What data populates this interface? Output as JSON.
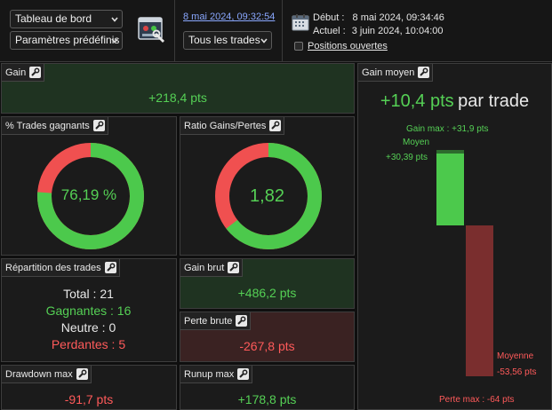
{
  "toolbar": {
    "view_select": "Tableau de bord",
    "params_select": "Paramètres prédéfinis",
    "date_link": "8 mai 2024, 09:32:54",
    "trades_select": "Tous les trades",
    "debut_label": "Début :",
    "debut_value": "8 mai 2024, 09:34:46",
    "actuel_label": "Actuel :",
    "actuel_value": "3 juin 2024, 10:04:00",
    "positions_label": "Positions ouvertes",
    "positions_checked": false
  },
  "panels": {
    "gain": {
      "title": "Gain",
      "value": "+218,4 pts"
    },
    "pct_trades": {
      "title": "% Trades gagnants",
      "value": "76,19 %",
      "fraction": 0.7619
    },
    "ratio": {
      "title": "Ratio Gains/Pertes",
      "value": "1,82",
      "fraction": 0.645
    },
    "repartition": {
      "title": "Répartition des trades",
      "rows": [
        {
          "label": "Total",
          "value": "21",
          "color": "#e8e8e8"
        },
        {
          "label": "Gagnantes",
          "value": "16",
          "color": "#55d055"
        },
        {
          "label": "Neutre",
          "value": "0",
          "color": "#e8e8e8"
        },
        {
          "label": "Perdantes",
          "value": "5",
          "color": "#ff5a5a"
        }
      ]
    },
    "gain_brut": {
      "title": "Gain brut",
      "value": "+486,2 pts"
    },
    "perte_brute": {
      "title": "Perte brute",
      "value": "-267,8 pts"
    },
    "drawdown": {
      "title": "Drawdown max",
      "value": "-91,7 pts"
    },
    "runup": {
      "title": "Runup max",
      "value": "+178,8 pts"
    },
    "gain_moyen": {
      "title": "Gain moyen",
      "value": "+10,4 pts",
      "suffix": "par trade",
      "gain_max_label": "Gain max : +31,9 pts",
      "moyen_label": "Moyen",
      "moyen_value": "+30,39 pts",
      "moyenne_label": "Moyenne",
      "moyenne_value": "-53,56 pts",
      "perte_max_label": "Perte max : -64 pts",
      "gain_max": 31.9,
      "gain_moyen": 30.39,
      "perte_moyenne": -53.56,
      "perte_max": -64
    }
  },
  "colors": {
    "green": "#4cc94c",
    "red": "#f05050",
    "accent_link": "#8aa8ff"
  },
  "icons": [
    "chevron-down-icon",
    "dashboard-tool-icon",
    "calendar-icon",
    "wrench-icon"
  ]
}
